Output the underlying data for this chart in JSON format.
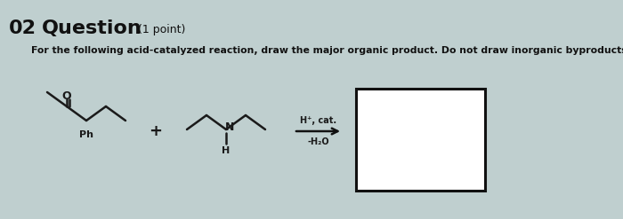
{
  "title_number": "02",
  "title_main": "Question",
  "title_point": "(1 point)",
  "subtitle": "For the following acid-catalyzed reaction, draw the major organic product. Do not draw inorganic byproducts.",
  "arrow_label_top": "H⁺, cat.",
  "arrow_label_bottom": "-H₂O",
  "background_color": "#bfcfcf",
  "figwidth": 7.0,
  "figheight": 2.47,
  "dpi": 100
}
